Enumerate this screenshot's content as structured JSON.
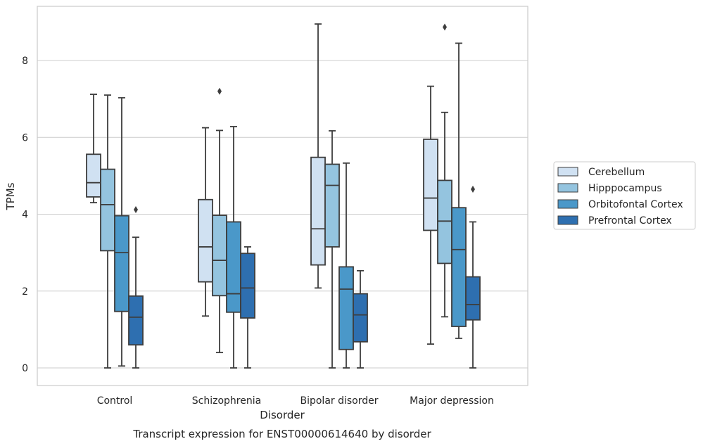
{
  "chart_data": {
    "type": "boxplot",
    "title": "Transcript expression for ENST00000614640 by disorder",
    "xlabel": "Disorder",
    "ylabel": "TPMs",
    "ylim": [
      -0.4,
      9.35
    ],
    "yticks": [
      0,
      2,
      4,
      6,
      8
    ],
    "grid": "horizontal",
    "legend_position": "right",
    "categories": [
      "Control",
      "Schizophrenia",
      "Bipolar disorder",
      "Major depression"
    ],
    "series": [
      {
        "name": "Cerebellum",
        "color": "#d0e1f2",
        "boxes": [
          {
            "whislo": 4.3,
            "q1": 4.45,
            "med": 4.82,
            "q3": 5.56,
            "whishi": 7.12,
            "fliers": []
          },
          {
            "whislo": 1.35,
            "q1": 2.24,
            "med": 3.15,
            "q3": 4.38,
            "whishi": 6.25,
            "fliers": []
          },
          {
            "whislo": 2.08,
            "q1": 2.68,
            "med": 3.62,
            "q3": 5.48,
            "whishi": 8.95,
            "fliers": []
          },
          {
            "whislo": 0.62,
            "q1": 3.58,
            "med": 4.42,
            "q3": 5.95,
            "whishi": 7.33,
            "fliers": []
          }
        ]
      },
      {
        "name": "Hipppocampus",
        "color": "#94c4df",
        "boxes": [
          {
            "whislo": 0.0,
            "q1": 3.05,
            "med": 4.25,
            "q3": 5.17,
            "whishi": 7.1,
            "fliers": []
          },
          {
            "whislo": 0.4,
            "q1": 1.88,
            "med": 2.8,
            "q3": 3.97,
            "whishi": 6.18,
            "fliers": [
              7.2
            ]
          },
          {
            "whislo": 0.0,
            "q1": 3.15,
            "med": 4.75,
            "q3": 5.3,
            "whishi": 6.17,
            "fliers": []
          },
          {
            "whislo": 1.33,
            "q1": 2.72,
            "med": 3.82,
            "q3": 4.88,
            "whishi": 6.65,
            "fliers": [
              8.87
            ]
          }
        ]
      },
      {
        "name": "Orbitofontal Cortex",
        "color": "#4a98c9",
        "boxes": [
          {
            "whislo": 0.05,
            "q1": 1.47,
            "med": 3.0,
            "q3": 3.96,
            "whishi": 7.03,
            "fliers": []
          },
          {
            "whislo": 0.0,
            "q1": 1.45,
            "med": 1.93,
            "q3": 3.8,
            "whishi": 6.28,
            "fliers": []
          },
          {
            "whislo": 0.0,
            "q1": 0.48,
            "med": 2.05,
            "q3": 2.63,
            "whishi": 5.33,
            "fliers": []
          },
          {
            "whislo": 0.77,
            "q1": 1.08,
            "med": 3.08,
            "q3": 4.17,
            "whishi": 8.45,
            "fliers": []
          }
        ]
      },
      {
        "name": "Prefrontal Cortex",
        "color": "#2e6fb0",
        "boxes": [
          {
            "whislo": 0.0,
            "q1": 0.6,
            "med": 1.32,
            "q3": 1.87,
            "whishi": 3.4,
            "fliers": [
              4.12
            ]
          },
          {
            "whislo": 0.0,
            "q1": 1.3,
            "med": 2.08,
            "q3": 2.98,
            "whishi": 3.15,
            "fliers": []
          },
          {
            "whislo": 0.0,
            "q1": 0.68,
            "med": 1.38,
            "q3": 1.93,
            "whishi": 2.53,
            "fliers": []
          },
          {
            "whislo": 0.0,
            "q1": 1.25,
            "med": 1.65,
            "q3": 2.37,
            "whishi": 3.8,
            "fliers": [
              4.65
            ]
          }
        ]
      }
    ]
  }
}
